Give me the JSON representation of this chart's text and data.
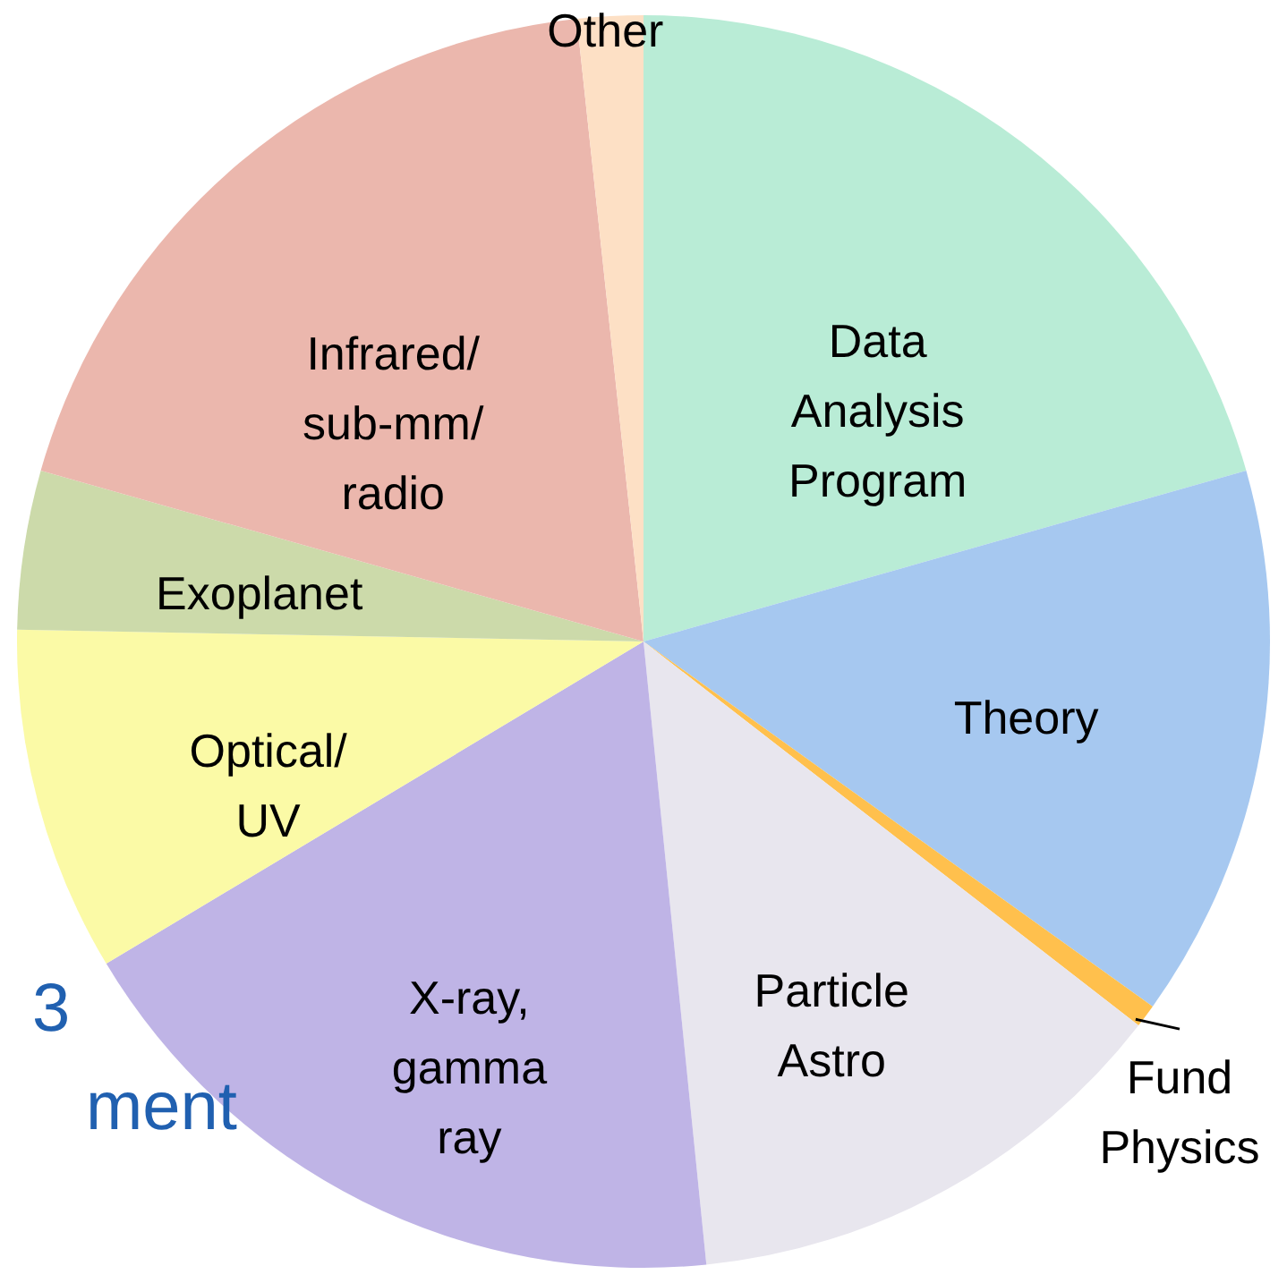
{
  "chart_data": {
    "type": "pie",
    "categories": [
      "Data\nAnalysis\nProgram",
      "Theory",
      "Fund\nPhysics",
      "Particle\nAstro",
      "X-ray,\ngamma\nray",
      "Optical/\nUV",
      "Exoplanet",
      "Infrared/\nsub-mm/\nradio",
      "Other"
    ],
    "values": [
      20.6,
      14.3,
      0.6,
      12.9,
      18.0,
      8.9,
      4.1,
      18.9,
      1.7
    ],
    "colors": [
      "#b9ecd6",
      "#a6c8f0",
      "#ffc04d",
      "#e8e6ee",
      "#bfb4e6",
      "#fbfaa6",
      "#ccdaaa",
      "#ebb7ad",
      "#fde0c5"
    ],
    "annotations": [
      "3",
      "ment"
    ]
  }
}
